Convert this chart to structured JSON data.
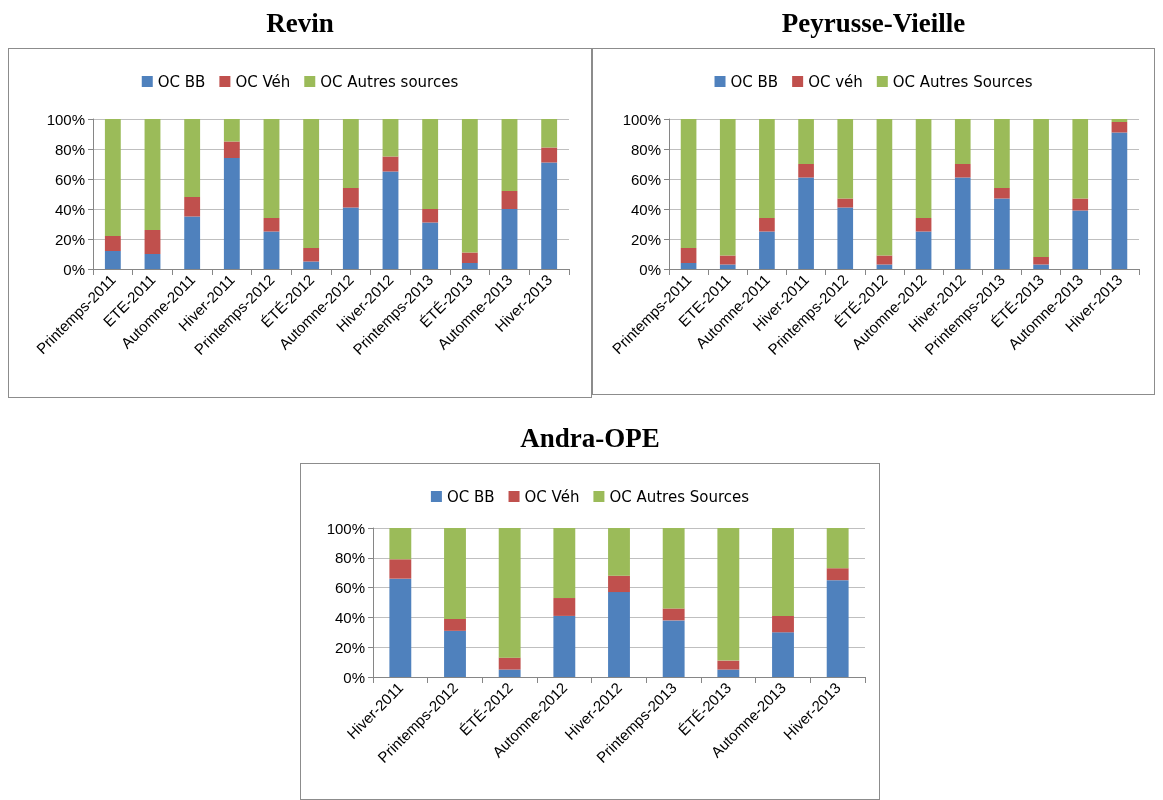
{
  "chart_data": [
    {
      "type": "bar",
      "title": "Revin",
      "stacked": true,
      "grid": "y",
      "legend": "top",
      "categories": [
        "Printemps-2011",
        "ETE-2011",
        "Automne-2011",
        "Hiver-2011",
        "Printemps-2012",
        "ÉTÉ-2012",
        "Automne-2012",
        "Hiver-2012",
        "Printemps-2013",
        "ÉTÉ-2013",
        "Automne-2013",
        "Hiver-2013"
      ],
      "ylim": [
        0,
        100
      ],
      "yticks": [
        {
          "value": 0,
          "label": "0%"
        },
        {
          "value": 20,
          "label": "20%"
        },
        {
          "value": 40,
          "label": "40%"
        },
        {
          "value": 60,
          "label": "60%"
        },
        {
          "value": 80,
          "label": "80%"
        },
        {
          "value": 100,
          "label": "100%"
        }
      ],
      "series": [
        {
          "name": "OC BB",
          "color": "#4f81bd",
          "values": [
            12,
            10,
            35,
            74,
            25,
            5,
            41,
            65,
            31,
            4,
            40,
            71
          ]
        },
        {
          "name": "OC Véh",
          "color": "#c0504d",
          "values": [
            10,
            16,
            13,
            11,
            9,
            9,
            13,
            10,
            9,
            7,
            12,
            10
          ]
        },
        {
          "name": "OC Autres sources",
          "color": "#9bbb59",
          "values": [
            78,
            74,
            52,
            15,
            66,
            86,
            46,
            25,
            60,
            89,
            48,
            19
          ]
        }
      ]
    },
    {
      "type": "bar",
      "title": "Peyrusse-Vieille",
      "stacked": true,
      "grid": "y",
      "legend": "top",
      "categories": [
        "Printemps-2011",
        "ETE-2011",
        "Automne-2011",
        "Hiver-2011",
        "Printemps-2012",
        "ÉTÉ-2012",
        "Automne-2012",
        "Hiver-2012",
        "Printemps-2013",
        "ÉTÉ-2013",
        "Automne-2013",
        "Hiver-2013"
      ],
      "ylim": [
        0,
        100
      ],
      "yticks": [
        {
          "value": 0,
          "label": "0%"
        },
        {
          "value": 20,
          "label": "20%"
        },
        {
          "value": 40,
          "label": "40%"
        },
        {
          "value": 60,
          "label": "60%"
        },
        {
          "value": 80,
          "label": "80%"
        },
        {
          "value": 100,
          "label": "100%"
        }
      ],
      "series": [
        {
          "name": "OC BB",
          "color": "#4f81bd",
          "values": [
            4,
            3,
            25,
            61,
            41,
            3,
            25,
            61,
            47,
            3,
            39,
            91
          ]
        },
        {
          "name": "OC véh",
          "color": "#c0504d",
          "values": [
            10,
            6,
            9,
            9,
            6,
            6,
            9,
            9,
            7,
            5,
            8,
            7
          ]
        },
        {
          "name": "OC Autres Sources",
          "color": "#9bbb59",
          "values": [
            86,
            91,
            66,
            30,
            53,
            91,
            66,
            30,
            46,
            92,
            53,
            2
          ]
        }
      ]
    },
    {
      "type": "bar",
      "title": "Andra-OPE",
      "stacked": true,
      "grid": "y",
      "legend": "top",
      "categories": [
        "Hiver-2011",
        "Printemps-2012",
        "ÉTÉ-2012",
        "Automne-2012",
        "Hiver-2012",
        "Printemps-2013",
        "ÉTÉ-2013",
        "Automne-2013",
        "Hiver-2013"
      ],
      "ylim": [
        0,
        100
      ],
      "yticks": [
        {
          "value": 0,
          "label": "0%"
        },
        {
          "value": 20,
          "label": "20%"
        },
        {
          "value": 40,
          "label": "40%"
        },
        {
          "value": 60,
          "label": "60%"
        },
        {
          "value": 80,
          "label": "80%"
        },
        {
          "value": 100,
          "label": "100%"
        }
      ],
      "series": [
        {
          "name": "OC BB",
          "color": "#4f81bd",
          "values": [
            66,
            31,
            5,
            41,
            57,
            38,
            5,
            30,
            65
          ]
        },
        {
          "name": "OC Véh",
          "color": "#c0504d",
          "values": [
            13,
            8,
            8,
            12,
            11,
            8,
            6,
            11,
            8
          ]
        },
        {
          "name": "OC Autres Sources",
          "color": "#9bbb59",
          "values": [
            21,
            61,
            87,
            47,
            32,
            54,
            89,
            59,
            27
          ]
        }
      ]
    }
  ]
}
